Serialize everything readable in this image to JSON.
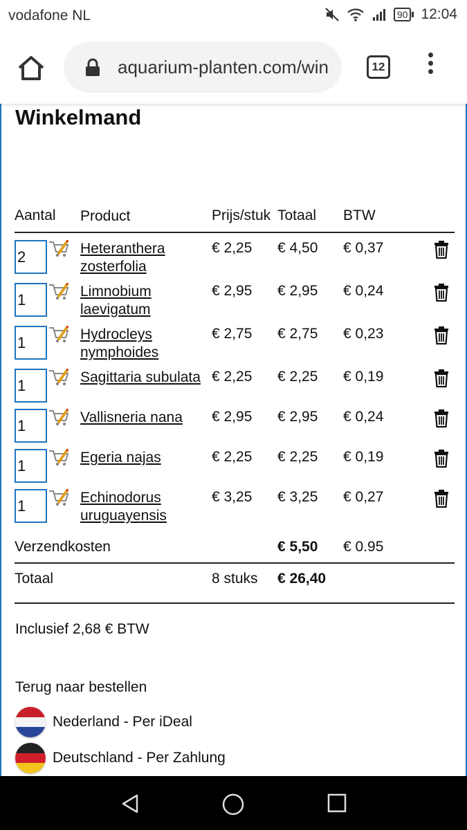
{
  "status": {
    "carrier": "vodafone NL",
    "battery": "90",
    "time": "12:04"
  },
  "browser": {
    "url": "aquarium-planten.com/win",
    "tab_count": "12"
  },
  "page": {
    "title": "Winkelmand"
  },
  "cart": {
    "headers": {
      "qty": "Aantal",
      "product": "Product",
      "price": "Prijs/stuk",
      "total": "Totaal",
      "btw": "BTW"
    },
    "items": [
      {
        "qty": "2",
        "name_line1": "Heteranthera",
        "name_line2": "zosterfolia",
        "price": "€ 2,25",
        "total": "€ 4,50",
        "btw": "€ 0,37"
      },
      {
        "qty": "1",
        "name_line1": "Limnobium",
        "name_line2": "laevigatum",
        "price": "€ 2,95",
        "total": "€ 2,95",
        "btw": "€ 0,24"
      },
      {
        "qty": "1",
        "name_line1": "Hydrocleys",
        "name_line2": "nymphoides",
        "price": "€ 2,75",
        "total": "€ 2,75",
        "btw": "€ 0,23"
      },
      {
        "qty": "1",
        "name_line1": "Sagittaria subulata",
        "name_line2": "",
        "price": "€ 2,25",
        "total": "€ 2,25",
        "btw": "€ 0,19"
      },
      {
        "qty": "1",
        "name_line1": "Vallisneria nana",
        "name_line2": "",
        "price": "€ 2,95",
        "total": "€ 2,95",
        "btw": "€ 0,24"
      },
      {
        "qty": "1",
        "name_line1": "Egeria najas",
        "name_line2": "",
        "price": "€ 2,25",
        "total": "€ 2,25",
        "btw": "€ 0,19"
      },
      {
        "qty": "1",
        "name_line1": "Echinodorus",
        "name_line2": "uruguayensis",
        "price": "€ 3,25",
        "total": "€ 3,25",
        "btw": "€ 0,27"
      }
    ],
    "shipping": {
      "label": "Verzendkosten",
      "total": "€ 5,50",
      "btw": "€ 0.95"
    },
    "summary": {
      "label": "Totaal",
      "count": "8 stuks",
      "total": "€ 26,40"
    },
    "incl_btw": "Inclusief 2,68 € BTW"
  },
  "links": {
    "back": "Terug naar bestellen",
    "pay_nl": "Nederland - Per iDeal",
    "pay_de": "Deutschland - Per Zahlung"
  },
  "icons": {
    "refresh": "refresh-cart-icon",
    "delete": "trash-icon",
    "flag_nl": "netherlands-flag-icon",
    "flag_de": "germany-flag-icon"
  }
}
